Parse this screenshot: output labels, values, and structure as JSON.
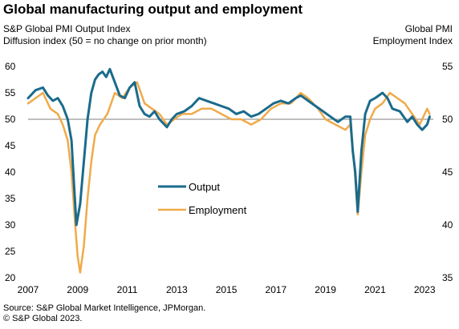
{
  "title": "Global manufacturing output and employment",
  "left_header": {
    "line1": "S&P Global  PMI Output  Index",
    "line2": "Diffusion index  (50 = no change on prior month)"
  },
  "right_header": {
    "line1": "Global  PMI",
    "line2": "Employment  Index"
  },
  "source": {
    "line1": "Source: S&P Global Market Intelligence, JPMorgan.",
    "line2": "© S&P Global 2023."
  },
  "colors": {
    "output": "#1a6b8c",
    "employment": "#f0aa4a",
    "refline": "#7f7f7f"
  },
  "chart_data": {
    "type": "line",
    "x_ticks": [
      "2007",
      "2009",
      "2011",
      "2013",
      "2015",
      "2017",
      "2019",
      "2021",
      "2023"
    ],
    "y_left": {
      "min": 20,
      "max": 60,
      "ticks": [
        20,
        25,
        30,
        35,
        40,
        45,
        50,
        55,
        60
      ]
    },
    "y_right": {
      "min": 35,
      "max": 55,
      "ticks": [
        35,
        40,
        45,
        50,
        55
      ]
    },
    "reference_line": 50,
    "grid": false,
    "legend_position": "center-left",
    "series": [
      {
        "name": "Output",
        "axis": "left",
        "points": [
          [
            2007.0,
            54.0
          ],
          [
            2007.3,
            55.5
          ],
          [
            2007.6,
            56.0
          ],
          [
            2007.8,
            54.5
          ],
          [
            2008.0,
            53.5
          ],
          [
            2008.2,
            54.0
          ],
          [
            2008.4,
            52.5
          ],
          [
            2008.6,
            50.0
          ],
          [
            2008.75,
            46.0
          ],
          [
            2008.85,
            38.0
          ],
          [
            2008.95,
            30.0
          ],
          [
            2009.1,
            34.0
          ],
          [
            2009.25,
            42.0
          ],
          [
            2009.4,
            50.0
          ],
          [
            2009.55,
            55.0
          ],
          [
            2009.7,
            57.5
          ],
          [
            2009.85,
            58.5
          ],
          [
            2010.0,
            59.0
          ],
          [
            2010.15,
            58.0
          ],
          [
            2010.3,
            59.5
          ],
          [
            2010.5,
            57.0
          ],
          [
            2010.7,
            54.5
          ],
          [
            2010.9,
            54.0
          ],
          [
            2011.1,
            56.0
          ],
          [
            2011.3,
            57.0
          ],
          [
            2011.5,
            52.5
          ],
          [
            2011.7,
            51.0
          ],
          [
            2011.9,
            50.5
          ],
          [
            2012.1,
            51.5
          ],
          [
            2012.3,
            50.0
          ],
          [
            2012.6,
            48.5
          ],
          [
            2012.8,
            50.0
          ],
          [
            2013.0,
            51.0
          ],
          [
            2013.3,
            51.5
          ],
          [
            2013.6,
            52.5
          ],
          [
            2013.9,
            54.0
          ],
          [
            2014.2,
            53.5
          ],
          [
            2014.5,
            53.0
          ],
          [
            2014.8,
            52.5
          ],
          [
            2015.1,
            52.0
          ],
          [
            2015.4,
            51.0
          ],
          [
            2015.7,
            51.5
          ],
          [
            2016.0,
            50.5
          ],
          [
            2016.3,
            51.0
          ],
          [
            2016.6,
            52.0
          ],
          [
            2016.9,
            53.0
          ],
          [
            2017.2,
            53.5
          ],
          [
            2017.5,
            53.0
          ],
          [
            2017.8,
            54.0
          ],
          [
            2018.0,
            54.5
          ],
          [
            2018.3,
            53.5
          ],
          [
            2018.6,
            52.5
          ],
          [
            2018.9,
            51.5
          ],
          [
            2019.2,
            50.5
          ],
          [
            2019.5,
            49.5
          ],
          [
            2019.8,
            50.5
          ],
          [
            2020.0,
            50.5
          ],
          [
            2020.1,
            44.0
          ],
          [
            2020.2,
            40.0
          ],
          [
            2020.3,
            32.5
          ],
          [
            2020.45,
            44.0
          ],
          [
            2020.6,
            51.0
          ],
          [
            2020.8,
            53.5
          ],
          [
            2021.0,
            54.0
          ],
          [
            2021.3,
            55.0
          ],
          [
            2021.5,
            54.0
          ],
          [
            2021.7,
            52.0
          ],
          [
            2022.0,
            51.5
          ],
          [
            2022.3,
            49.5
          ],
          [
            2022.5,
            50.5
          ],
          [
            2022.7,
            49.0
          ],
          [
            2022.9,
            48.0
          ],
          [
            2023.1,
            49.0
          ],
          [
            2023.2,
            50.5
          ]
        ]
      },
      {
        "name": "Employment",
        "axis": "right",
        "points": [
          [
            2007.0,
            51.5
          ],
          [
            2007.3,
            52.0
          ],
          [
            2007.6,
            52.5
          ],
          [
            2007.9,
            51.0
          ],
          [
            2008.2,
            50.5
          ],
          [
            2008.4,
            49.5
          ],
          [
            2008.6,
            48.0
          ],
          [
            2008.75,
            45.0
          ],
          [
            2008.9,
            40.0
          ],
          [
            2009.0,
            37.0
          ],
          [
            2009.1,
            35.5
          ],
          [
            2009.25,
            38.0
          ],
          [
            2009.4,
            42.5
          ],
          [
            2009.55,
            46.0
          ],
          [
            2009.7,
            48.5
          ],
          [
            2009.9,
            49.5
          ],
          [
            2010.2,
            50.5
          ],
          [
            2010.5,
            52.5
          ],
          [
            2010.8,
            52.0
          ],
          [
            2011.1,
            53.0
          ],
          [
            2011.4,
            53.5
          ],
          [
            2011.7,
            51.5
          ],
          [
            2012.0,
            51.0
          ],
          [
            2012.3,
            50.5
          ],
          [
            2012.6,
            49.5
          ],
          [
            2012.9,
            50.0
          ],
          [
            2013.2,
            50.5
          ],
          [
            2013.6,
            50.5
          ],
          [
            2014.0,
            51.0
          ],
          [
            2014.4,
            51.0
          ],
          [
            2014.8,
            50.5
          ],
          [
            2015.2,
            50.0
          ],
          [
            2015.6,
            50.0
          ],
          [
            2016.0,
            49.5
          ],
          [
            2016.4,
            50.0
          ],
          [
            2016.8,
            51.0
          ],
          [
            2017.2,
            51.5
          ],
          [
            2017.6,
            51.5
          ],
          [
            2018.0,
            52.5
          ],
          [
            2018.3,
            52.0
          ],
          [
            2018.7,
            51.0
          ],
          [
            2019.0,
            50.0
          ],
          [
            2019.4,
            49.5
          ],
          [
            2019.8,
            49.0
          ],
          [
            2020.0,
            49.5
          ],
          [
            2020.15,
            46.0
          ],
          [
            2020.3,
            41.0
          ],
          [
            2020.45,
            45.0
          ],
          [
            2020.6,
            48.5
          ],
          [
            2020.8,
            50.0
          ],
          [
            2021.0,
            51.0
          ],
          [
            2021.3,
            51.5
          ],
          [
            2021.6,
            52.5
          ],
          [
            2021.9,
            52.0
          ],
          [
            2022.2,
            51.5
          ],
          [
            2022.5,
            50.5
          ],
          [
            2022.8,
            49.5
          ],
          [
            2023.0,
            50.5
          ],
          [
            2023.1,
            51.0
          ],
          [
            2023.2,
            50.5
          ]
        ]
      }
    ]
  }
}
